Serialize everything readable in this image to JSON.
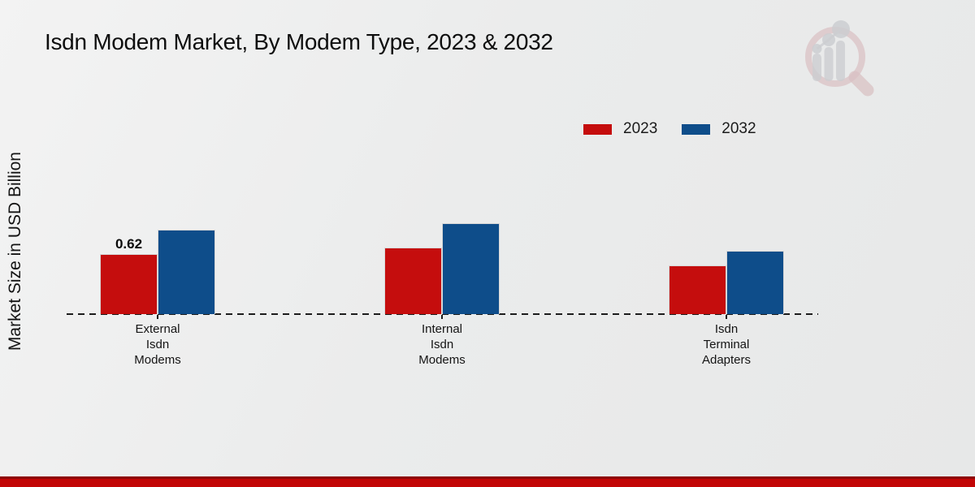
{
  "title": "Isdn Modem Market, By Modem Type, 2023 & 2032",
  "y_axis_label": "Market Size in USD Billion",
  "colors": {
    "series_2023": "#c50d0d",
    "series_2032": "#0e4d8a",
    "footer_stripe": "#c20505",
    "footer_stripe_edge": "#8e0404",
    "axis": "#1c1c1c"
  },
  "legend": {
    "items": [
      {
        "label": "2023",
        "color": "#c50d0d"
      },
      {
        "label": "2032",
        "color": "#0e4d8a"
      }
    ]
  },
  "logo": {
    "name": "market-research-future-logo"
  },
  "chart_data": {
    "type": "bar",
    "title": "Isdn Modem Market, By Modem Type, 2023 & 2032",
    "xlabel": "",
    "ylabel": "Market Size in USD Billion",
    "categories": [
      "External\nIsdn\nModems",
      "Internal\nIsdn\nModems",
      "Isdn\nTerminal\nAdapters"
    ],
    "series": [
      {
        "name": "2023",
        "color": "#c50d0d",
        "values": [
          0.62,
          0.69,
          0.5
        ]
      },
      {
        "name": "2032",
        "color": "#0e4d8a",
        "values": [
          0.87,
          0.94,
          0.65
        ]
      }
    ],
    "bar_labels": [
      {
        "series_index": 0,
        "category_index": 0,
        "text": "0.62"
      }
    ],
    "ylim": [
      0,
      1.0
    ],
    "grid": false,
    "legend_position": "upper right",
    "baseline_style": "dashed"
  }
}
